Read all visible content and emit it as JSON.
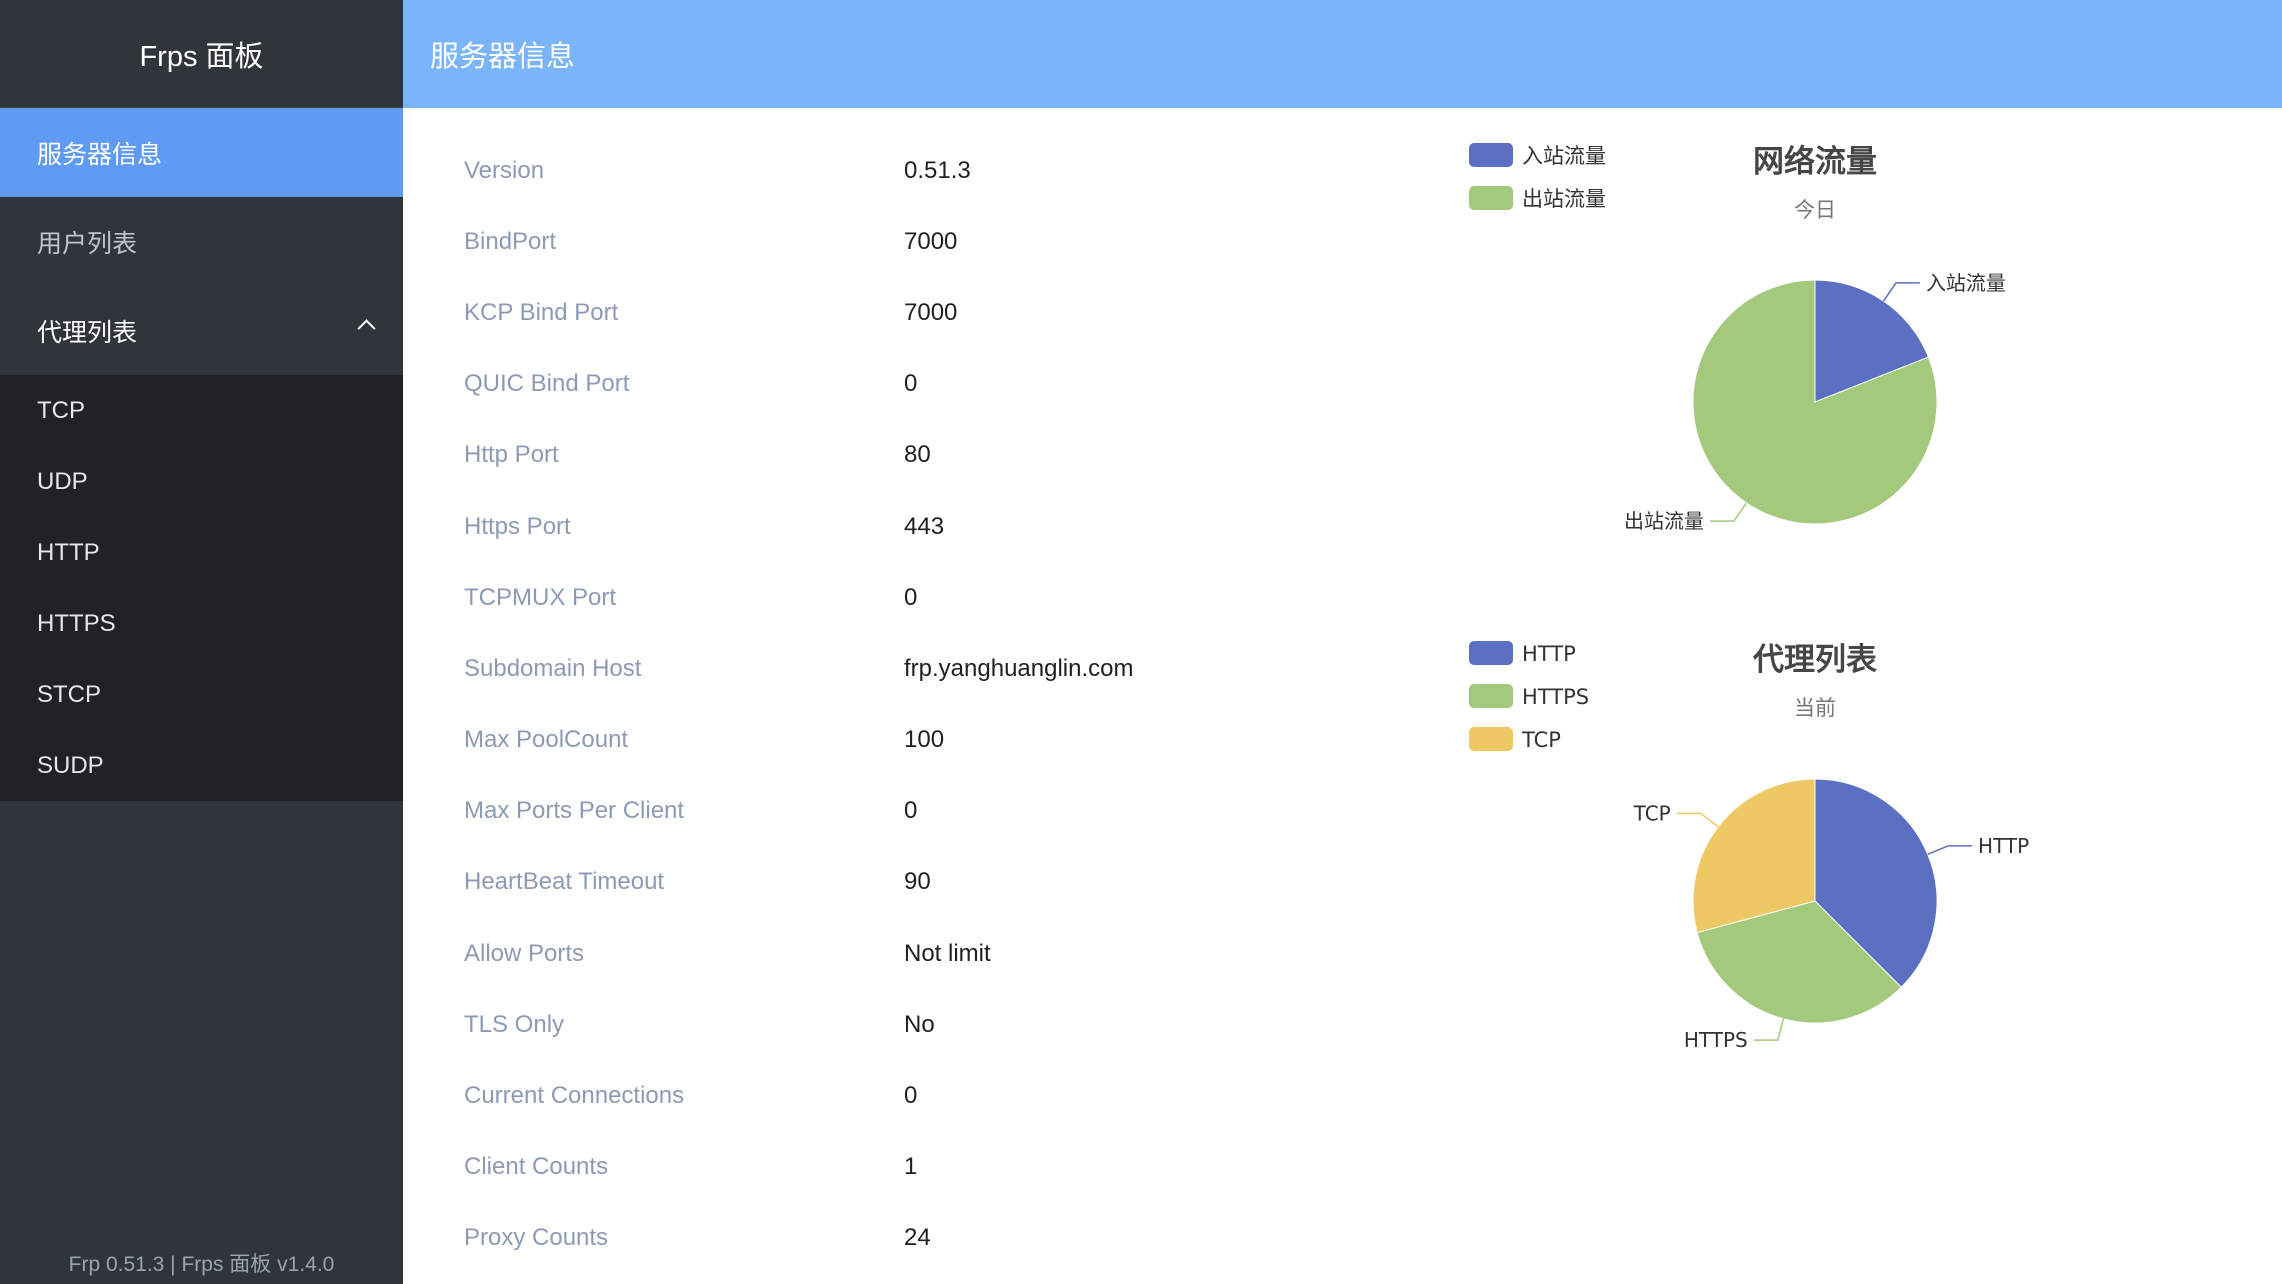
{
  "sidebar": {
    "brand": "Frps 面板",
    "items": [
      {
        "label": "服务器信息",
        "active": true
      },
      {
        "label": "用户列表"
      },
      {
        "label": "代理列表",
        "expanded": true
      }
    ],
    "sub_items": [
      "TCP",
      "UDP",
      "HTTP",
      "HTTPS",
      "STCP",
      "SUDP"
    ],
    "footer": "Frp 0.51.3 | Frps 面板 v1.4.0"
  },
  "header": {
    "title": "服务器信息"
  },
  "info": [
    {
      "label": "Version",
      "value": "0.51.3"
    },
    {
      "label": "BindPort",
      "value": "7000"
    },
    {
      "label": "KCP Bind Port",
      "value": "7000"
    },
    {
      "label": "QUIC Bind Port",
      "value": "0"
    },
    {
      "label": "Http Port",
      "value": "80"
    },
    {
      "label": "Https Port",
      "value": "443"
    },
    {
      "label": "TCPMUX Port",
      "value": "0"
    },
    {
      "label": "Subdomain Host",
      "value": "frp.yanghuanglin.com"
    },
    {
      "label": "Max PoolCount",
      "value": "100"
    },
    {
      "label": "Max Ports Per Client",
      "value": "0"
    },
    {
      "label": "HeartBeat Timeout",
      "value": "90"
    },
    {
      "label": "Allow Ports",
      "value": "Not limit"
    },
    {
      "label": "TLS Only",
      "value": "No"
    },
    {
      "label": "Current Connections",
      "value": "0"
    },
    {
      "label": "Client Counts",
      "value": "1"
    },
    {
      "label": "Proxy Counts",
      "value": "24"
    }
  ],
  "colors": {
    "sidebar": "#30343b",
    "active": "#5f9bf5",
    "header": "#7ab4fa"
  },
  "chart_data": [
    {
      "type": "pie",
      "title": "网络流量",
      "subtitle": "今日",
      "legend": "top-left",
      "categories": [
        "入站流量",
        "出站流量"
      ],
      "values": [
        19,
        81
      ],
      "colors": [
        "#5b70c1",
        "#a3c97c"
      ]
    },
    {
      "type": "pie",
      "title": "代理列表",
      "subtitle": "当前",
      "legend": "top-left",
      "categories": [
        "HTTP",
        "HTTPS",
        "TCP"
      ],
      "values": [
        9,
        8,
        7
      ],
      "colors": [
        "#5b70c1",
        "#a3c97c",
        "#eec865"
      ]
    }
  ]
}
